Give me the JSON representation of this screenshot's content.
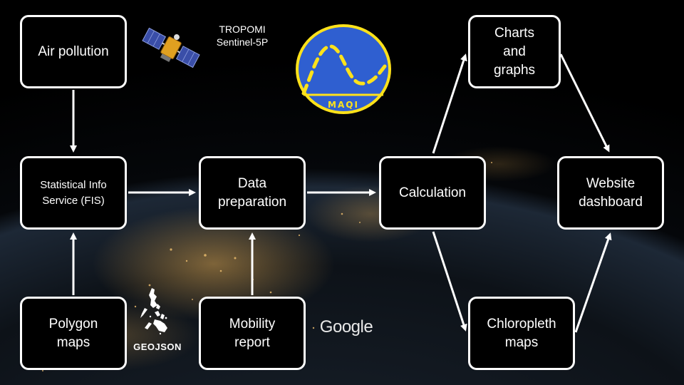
{
  "nodes": {
    "air_pollution": "Air pollution",
    "fis": "Statistical Info\nService (FIS)",
    "polygon_maps": "Polygon\nmaps",
    "data_preparation": "Data\npreparation",
    "mobility_report": "Mobility\nreport",
    "calculation": "Calculation",
    "charts_graphs": "Charts\nand\ngraphs",
    "chloropleth_maps": "Chloropleth\nmaps",
    "website_dashboard": "Website\ndashboard"
  },
  "captions": {
    "tropomi": "TROPOMI\nSentinel-5P",
    "geojson": "GEOJSON",
    "google": "Google"
  },
  "logos": {
    "maqi": "MAQI"
  },
  "colors": {
    "maqi_fill": "#2f5fd0",
    "maqi_ring": "#ffe21a",
    "satellite_panel": "#3a4ea8",
    "satellite_body": "#e0a020"
  }
}
